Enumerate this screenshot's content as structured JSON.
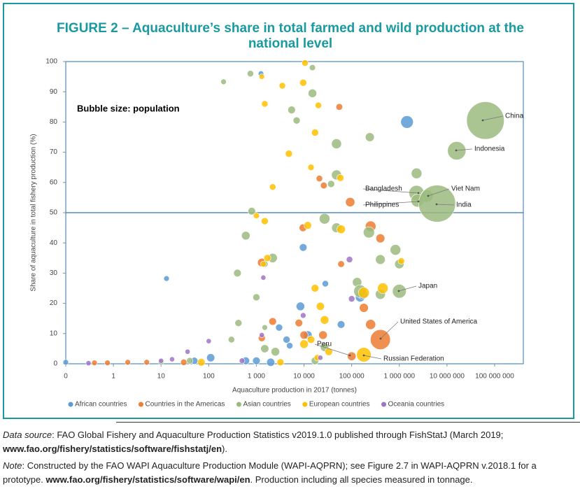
{
  "chart_data": {
    "type": "bubble",
    "title": "FIGURE 2 – Aquaculture’s share in total farmed and wild production at the national level",
    "subtitle": "Bubble size: population",
    "x_label": "Aquaculture production in 2017 (tonnes)",
    "y_label": "Share of aquaculture in total fishery production (%)",
    "xscale": "log",
    "xlim": [
      0.1,
      400000000
    ],
    "xticks": [
      {
        "value": 0.1,
        "label": "0"
      },
      1,
      10,
      100,
      {
        "value": 1000,
        "label": "1 000"
      },
      {
        "value": 10000,
        "label": "10 000"
      },
      {
        "value": 100000,
        "label": "100 000"
      },
      {
        "value": 1000000,
        "label": "1 000 000"
      },
      {
        "value": 10000000,
        "label": "10 000 000"
      },
      {
        "value": 100000000,
        "label": "100 000 000"
      }
    ],
    "ylim": [
      0,
      100
    ],
    "yticks": [
      0,
      10,
      20,
      30,
      40,
      50,
      60,
      70,
      80,
      90,
      100
    ],
    "hline": 50,
    "legend": "bottom",
    "series": [
      {
        "name": "African countries",
        "color": "#5b9bd5",
        "x": [
          1250,
          13,
          9600,
          28000,
          8400,
          12000,
          60000,
          3000,
          4300,
          5000,
          110,
          1000,
          0.1,
          150000,
          170000,
          50,
          600,
          2000,
          1450000
        ],
        "values": [
          96,
          28.2,
          38.5,
          26.5,
          19,
          9.5,
          13,
          12,
          8,
          6,
          2,
          1,
          0.5,
          22,
          23,
          1,
          1,
          0.5,
          80
        ],
        "sizes": [
          5,
          5,
          20,
          10,
          30,
          30,
          20,
          15,
          15,
          10,
          25,
          20,
          5,
          40,
          50,
          15,
          20,
          25,
          98
        ]
      },
      {
        "name": "Countries in the Americas",
        "color": "#ed7d31",
        "x": [
          55000,
          21000,
          26000,
          93000,
          250000,
          400000,
          9500,
          1300,
          60000,
          180000,
          250000,
          400000,
          100000,
          2200,
          7800,
          10000,
          1300,
          25000,
          0.4,
          0.75,
          2,
          5,
          30
        ],
        "values": [
          85,
          61.3,
          59,
          53.5,
          45.5,
          41.5,
          45,
          33.5,
          33,
          18.5,
          13,
          8,
          2.5,
          14,
          13.5,
          9.5,
          8.5,
          9.5,
          0.3,
          0.3,
          0.5,
          0.5,
          0.5
        ],
        "sizes": [
          12,
          10,
          12,
          40,
          60,
          35,
          20,
          30,
          12,
          35,
          50,
          327,
          32,
          20,
          20,
          25,
          15,
          30,
          5,
          5,
          5,
          5,
          10
        ]
      },
      {
        "name": "Asian countries",
        "color": "#9bbb7e",
        "x": [
          64000000,
          16000000,
          2300000,
          3800000,
          2400000,
          6200000,
          1000000,
          205,
          750,
          15000,
          15000,
          5500,
          7000,
          48000,
          240000,
          2300000,
          48000,
          37000,
          800,
          600,
          2200,
          1500,
          27000,
          48000,
          230000,
          830000,
          1000000,
          400000,
          130000,
          150000,
          400000,
          400,
          1000,
          420,
          300,
          1500,
          1500,
          2500,
          27000,
          17000,
          10,
          40
        ],
        "values": [
          80.5,
          70.5,
          56.5,
          55.5,
          54,
          53,
          24,
          93.3,
          96,
          98,
          89.5,
          84,
          80.5,
          72.8,
          75,
          63,
          62.5,
          59.5,
          50.5,
          42.4,
          35,
          33,
          48,
          45,
          43.5,
          37.7,
          33,
          34.5,
          27,
          24,
          23,
          30,
          22,
          13.5,
          8,
          12,
          5,
          4,
          5.5,
          1,
          0.5,
          1
        ],
        "sizes": [
          1400,
          264,
          165,
          95,
          105,
          1350,
          127,
          5,
          10,
          8,
          30,
          20,
          15,
          50,
          35,
          60,
          50,
          15,
          20,
          30,
          40,
          10,
          60,
          45,
          70,
          60,
          40,
          45,
          40,
          100,
          50,
          20,
          15,
          15,
          10,
          5,
          25,
          30,
          30,
          20,
          5,
          10
        ]
      },
      {
        "name": "European countries",
        "color": "#ffc000",
        "x": [
          10500,
          1300,
          3500,
          9600,
          1500,
          20000,
          17000,
          4800,
          14000,
          2200,
          58000,
          1500,
          1000,
          12000,
          60000,
          1400,
          1700,
          1100000,
          17000,
          180000,
          450000,
          22000,
          27000,
          10000,
          14000,
          33000,
          180000,
          70,
          3200,
          19000
        ],
        "values": [
          99.5,
          95,
          92,
          93,
          86,
          85.5,
          76.5,
          69.5,
          65,
          58.5,
          61.5,
          47.2,
          49,
          45.8,
          44.5,
          33,
          35,
          34,
          25,
          23.5,
          25,
          19,
          14.5,
          6.5,
          8,
          4,
          3,
          0.5,
          0.5,
          2
        ],
        "sizes": [
          10,
          5,
          10,
          15,
          10,
          10,
          15,
          15,
          10,
          10,
          15,
          15,
          8,
          20,
          30,
          7,
          15,
          10,
          20,
          65,
          60,
          25,
          30,
          30,
          20,
          20,
          145,
          20,
          15,
          10
        ]
      },
      {
        "name": "Oceania countries",
        "color": "#a074c4",
        "x": [
          90000,
          9600,
          1400,
          100,
          36,
          17,
          1300,
          100000,
          22000,
          0.3,
          10,
          500
        ],
        "values": [
          34.5,
          16,
          28.5,
          7.5,
          4,
          1.5,
          9.5,
          21.5,
          2,
          0.2,
          1,
          1
        ],
        "sizes": [
          10,
          5,
          3,
          3,
          3,
          3,
          3,
          10,
          3,
          3,
          3,
          5
        ]
      }
    ],
    "annotations": [
      "China",
      "Indonesia",
      "Bangladesh",
      "Viet Nam",
      "Philippines",
      "India",
      "Japan",
      "United States of America",
      "Peru",
      "Russian Federation"
    ]
  },
  "footer": {
    "source": {
      "label": "Data source",
      "text": ": FAO Global Fishery and Aquaculture Production Statistics v2019.1.0 published through FishStatJ (March 2019; ",
      "link": "www.fao.org/fishery/statistics/software/fishstatj/en",
      "end": ")."
    },
    "note": {
      "label": "Note",
      "text": ": Constructed by the FAO WAPI Aquaculture Production Module (WAPI-AQPRN); see Figure 2.7 in WAPI-AQPRN v.2018.1 for a prototype. ",
      "link": "www.fao.org/fishery/statistics/software/wapi/en",
      "end": ". Production including all species measured in tonnage."
    }
  }
}
